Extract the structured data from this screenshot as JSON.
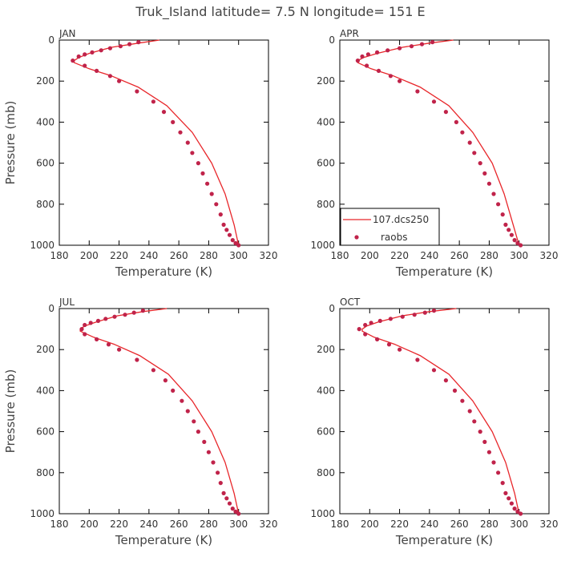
{
  "title": "Truk_Island   latitude= 7.5 N longitude= 151 E",
  "colors": {
    "model": "#e8262a",
    "obs": "#c0234a",
    "axis": "#000000",
    "text": "#444444"
  },
  "legend": {
    "model_label": "107.dcs250",
    "obs_label": "raobs",
    "placement": "lower-left of APR panel"
  },
  "chart_data": [
    {
      "type": "line",
      "panel": "JAN",
      "xlabel": "Temperature (K)",
      "ylabel": "Pressure (mb)",
      "xlim": [
        180,
        320
      ],
      "ylim": [
        1000,
        0
      ],
      "xticks": [
        180,
        200,
        220,
        240,
        260,
        280,
        300,
        320
      ],
      "yticks": [
        0,
        200,
        400,
        600,
        800,
        1000
      ],
      "series": [
        {
          "name": "107.dcs250",
          "kind": "line",
          "x": [
            247,
            233,
            215,
            200,
            193,
            190,
            190,
            200,
            215,
            233,
            252,
            269,
            282,
            291,
            297,
            300
          ],
          "y": [
            0,
            15,
            35,
            65,
            85,
            100,
            110,
            140,
            175,
            230,
            320,
            450,
            600,
            750,
            900,
            1000
          ]
        },
        {
          "name": "raobs",
          "kind": "scatter",
          "x": [
            233,
            227,
            221,
            214,
            208,
            202,
            197,
            193,
            189,
            197,
            205,
            214,
            220,
            232,
            243,
            250,
            256,
            261,
            266,
            269,
            273,
            276,
            279,
            282,
            285,
            288,
            290,
            292,
            294,
            296,
            298,
            300
          ],
          "y": [
            10,
            20,
            30,
            40,
            50,
            60,
            70,
            80,
            100,
            125,
            150,
            175,
            200,
            250,
            300,
            350,
            400,
            450,
            500,
            550,
            600,
            650,
            700,
            750,
            800,
            850,
            900,
            925,
            950,
            975,
            990,
            1000
          ]
        }
      ]
    },
    {
      "type": "line",
      "panel": "APR",
      "xlabel": "Temperature (K)",
      "ylabel": "",
      "xlim": [
        180,
        320
      ],
      "ylim": [
        1000,
        0
      ],
      "xticks": [
        180,
        200,
        220,
        240,
        260,
        280,
        300,
        320
      ],
      "yticks": [
        0,
        200,
        400,
        600,
        800,
        1000
      ],
      "series": [
        {
          "name": "107.dcs250",
          "kind": "line",
          "x": [
            256,
            240,
            222,
            205,
            196,
            192,
            192,
            201,
            216,
            234,
            253,
            269,
            282,
            290,
            296,
            300
          ],
          "y": [
            0,
            15,
            35,
            65,
            85,
            100,
            110,
            140,
            175,
            230,
            320,
            450,
            600,
            750,
            900,
            1000
          ]
        },
        {
          "name": "raobs",
          "kind": "scatter",
          "x": [
            242,
            235,
            228,
            220,
            212,
            205,
            199,
            195,
            192,
            198,
            206,
            214,
            220,
            232,
            243,
            251,
            258,
            262,
            267,
            270,
            274,
            277,
            280,
            283,
            286,
            289,
            291,
            293,
            295,
            297,
            299,
            301
          ],
          "y": [
            10,
            20,
            30,
            40,
            50,
            60,
            70,
            80,
            100,
            125,
            150,
            175,
            200,
            250,
            300,
            350,
            400,
            450,
            500,
            550,
            600,
            650,
            700,
            750,
            800,
            850,
            900,
            925,
            950,
            975,
            990,
            1000
          ]
        }
      ]
    },
    {
      "type": "line",
      "panel": "JUL",
      "xlabel": "Temperature (K)",
      "ylabel": "Pressure (mb)",
      "xlim": [
        180,
        320
      ],
      "ylim": [
        1000,
        0
      ],
      "xticks": [
        180,
        200,
        220,
        240,
        260,
        280,
        300,
        320
      ],
      "yticks": [
        0,
        200,
        400,
        600,
        800,
        1000
      ],
      "series": [
        {
          "name": "107.dcs250",
          "kind": "line",
          "x": [
            252,
            236,
            219,
            205,
            197,
            194,
            194,
            203,
            217,
            234,
            253,
            269,
            282,
            291,
            297,
            300
          ],
          "y": [
            0,
            15,
            35,
            65,
            85,
            100,
            110,
            140,
            175,
            230,
            320,
            450,
            600,
            750,
            900,
            1000
          ]
        },
        {
          "name": "raobs",
          "kind": "scatter",
          "x": [
            236,
            230,
            224,
            217,
            211,
            206,
            201,
            197,
            195,
            197,
            205,
            213,
            220,
            232,
            243,
            251,
            256,
            262,
            266,
            270,
            273,
            277,
            280,
            283,
            286,
            288,
            290,
            292,
            294,
            296,
            298,
            300
          ],
          "y": [
            10,
            20,
            30,
            40,
            50,
            60,
            70,
            80,
            100,
            125,
            150,
            175,
            200,
            250,
            300,
            350,
            400,
            450,
            500,
            550,
            600,
            650,
            700,
            750,
            800,
            850,
            900,
            925,
            950,
            975,
            990,
            1000
          ]
        }
      ]
    },
    {
      "type": "line",
      "panel": "OCT",
      "xlabel": "Temperature (K)",
      "ylabel": "",
      "xlim": [
        180,
        320
      ],
      "ylim": [
        1000,
        0
      ],
      "xticks": [
        180,
        200,
        220,
        240,
        260,
        280,
        300,
        320
      ],
      "yticks": [
        0,
        200,
        400,
        600,
        800,
        1000
      ],
      "series": [
        {
          "name": "107.dcs250",
          "kind": "line",
          "x": [
            258,
            240,
            222,
            206,
            198,
            195,
            195,
            203,
            217,
            234,
            253,
            269,
            282,
            291,
            297,
            300
          ],
          "y": [
            0,
            15,
            35,
            65,
            85,
            100,
            110,
            140,
            175,
            230,
            320,
            450,
            600,
            750,
            900,
            1000
          ]
        },
        {
          "name": "raobs",
          "kind": "scatter",
          "x": [
            243,
            237,
            230,
            222,
            214,
            207,
            201,
            197,
            193,
            197,
            205,
            213,
            220,
            232,
            243,
            251,
            257,
            262,
            267,
            270,
            274,
            277,
            280,
            283,
            286,
            289,
            291,
            293,
            295,
            297,
            299,
            301
          ],
          "y": [
            10,
            20,
            30,
            40,
            50,
            60,
            70,
            80,
            100,
            125,
            150,
            175,
            200,
            250,
            300,
            350,
            400,
            450,
            500,
            550,
            600,
            650,
            700,
            750,
            800,
            850,
            900,
            925,
            950,
            975,
            990,
            1000
          ]
        }
      ]
    }
  ]
}
